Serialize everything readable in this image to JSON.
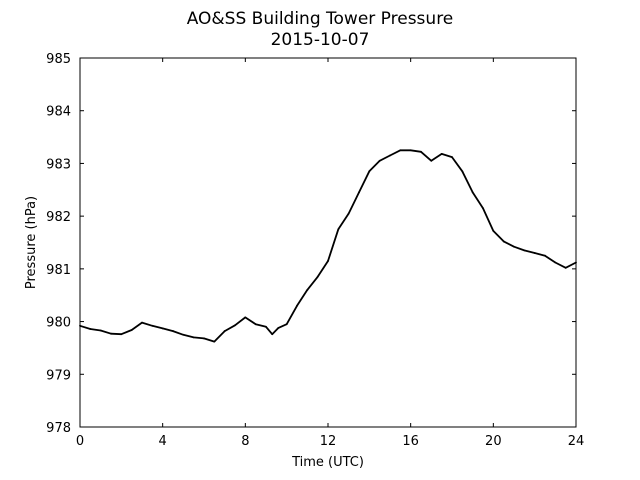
{
  "chart_data": {
    "type": "line",
    "title": "AO&SS Building Tower Pressure",
    "subtitle": "2015-10-07",
    "xlabel": "Time (UTC)",
    "ylabel": "Pressure (hPa)",
    "xlim": [
      0,
      24
    ],
    "ylim": [
      978,
      985
    ],
    "xticks": [
      0,
      4,
      8,
      12,
      16,
      20,
      24
    ],
    "yticks": [
      978,
      979,
      980,
      981,
      982,
      983,
      984,
      985
    ],
    "grid": false,
    "series": [
      {
        "color": "#000000",
        "x": [
          0,
          0.5,
          1,
          1.5,
          2,
          2.5,
          3,
          3.5,
          4,
          4.5,
          5,
          5.5,
          6,
          6.5,
          7,
          7.5,
          8,
          8.5,
          9,
          9.3,
          9.6,
          10,
          10.5,
          11,
          11.5,
          12,
          12.5,
          13,
          13.5,
          14,
          14.5,
          15,
          15.5,
          16,
          16.5,
          17,
          17.5,
          18,
          18.5,
          19,
          19.5,
          20,
          20.5,
          21,
          21.5,
          22,
          22.5,
          23,
          23.5,
          24
        ],
        "y": [
          979.92,
          979.86,
          979.83,
          979.77,
          979.76,
          979.84,
          979.98,
          979.92,
          979.87,
          979.82,
          979.75,
          979.7,
          979.68,
          979.62,
          979.82,
          979.93,
          980.08,
          979.95,
          979.9,
          979.76,
          979.88,
          979.95,
          980.3,
          980.6,
          980.85,
          981.15,
          981.75,
          982.05,
          982.45,
          982.85,
          983.05,
          983.15,
          983.25,
          983.25,
          983.22,
          983.05,
          983.18,
          983.12,
          982.85,
          982.45,
          982.15,
          981.72,
          981.52,
          981.42,
          981.35,
          981.3,
          981.25,
          981.12,
          981.02,
          981.12
        ]
      }
    ]
  }
}
